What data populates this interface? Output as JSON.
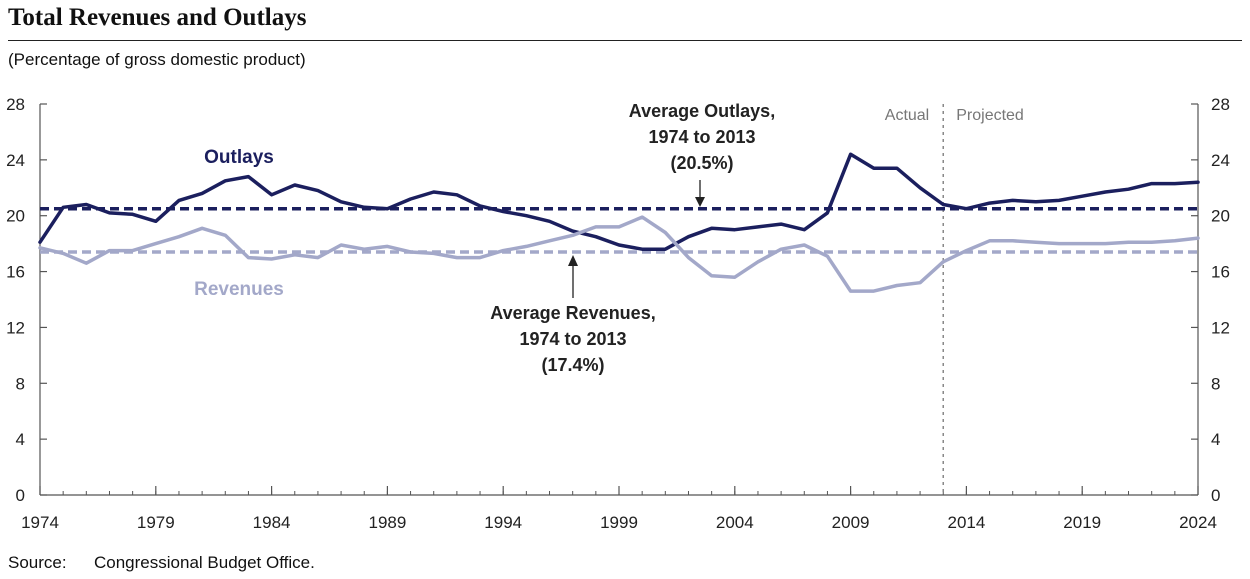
{
  "title": "Total Revenues and Outlays",
  "subtitle": "(Percentage of gross domestic product)",
  "source": {
    "label": "Source:",
    "text": "Congressional Budget Office."
  },
  "colors": {
    "outlays": "#1b1f5e",
    "revenues": "#a3a8c9",
    "axis": "#555555",
    "divider": "#888888",
    "region_label": "#777777"
  },
  "chart_data": {
    "type": "line",
    "x_range": [
      1974,
      2024
    ],
    "ylim": [
      0,
      28
    ],
    "y_ticks": [
      0,
      4,
      8,
      12,
      16,
      20,
      24,
      28
    ],
    "x_ticks": [
      1974,
      1979,
      1984,
      1989,
      1994,
      1999,
      2004,
      2009,
      2014,
      2019,
      2024
    ],
    "grid": false,
    "divider_x": 2013,
    "region_labels": {
      "actual": "Actual",
      "projected": "Projected"
    },
    "x": [
      1974,
      1975,
      1976,
      1977,
      1978,
      1979,
      1980,
      1981,
      1982,
      1983,
      1984,
      1985,
      1986,
      1987,
      1988,
      1989,
      1990,
      1991,
      1992,
      1993,
      1994,
      1995,
      1996,
      1997,
      1998,
      1999,
      2000,
      2001,
      2002,
      2003,
      2004,
      2005,
      2006,
      2007,
      2008,
      2009,
      2010,
      2011,
      2012,
      2013,
      2014,
      2015,
      2016,
      2017,
      2018,
      2019,
      2020,
      2021,
      2022,
      2023,
      2024
    ],
    "series": [
      {
        "name": "Outlays",
        "values": [
          18.1,
          20.6,
          20.8,
          20.2,
          20.1,
          19.6,
          21.1,
          21.6,
          22.5,
          22.8,
          21.5,
          22.2,
          21.8,
          21.0,
          20.6,
          20.5,
          21.2,
          21.7,
          21.5,
          20.7,
          20.3,
          20.0,
          19.6,
          18.9,
          18.5,
          17.9,
          17.6,
          17.6,
          18.5,
          19.1,
          19.0,
          19.2,
          19.4,
          19.0,
          20.2,
          24.4,
          23.4,
          23.4,
          22.0,
          20.8,
          20.5,
          20.9,
          21.1,
          21.0,
          21.1,
          21.4,
          21.7,
          21.9,
          22.3,
          22.3,
          22.4
        ]
      },
      {
        "name": "Revenues",
        "values": [
          17.7,
          17.3,
          16.6,
          17.5,
          17.5,
          18.0,
          18.5,
          19.1,
          18.6,
          17.0,
          16.9,
          17.2,
          17.0,
          17.9,
          17.6,
          17.8,
          17.4,
          17.3,
          17.0,
          17.0,
          17.5,
          17.8,
          18.2,
          18.6,
          19.2,
          19.2,
          19.9,
          18.8,
          17.0,
          15.7,
          15.6,
          16.7,
          17.6,
          17.9,
          17.1,
          14.6,
          14.6,
          15.0,
          15.2,
          16.7,
          17.5,
          18.2,
          18.2,
          18.1,
          18.0,
          18.0,
          18.0,
          18.1,
          18.1,
          18.2,
          18.4
        ]
      }
    ],
    "averages": [
      {
        "name": "Average Outlays, 1974 to 2013",
        "value": 20.5
      },
      {
        "name": "Average Revenues, 1974 to 2013",
        "value": 17.4
      }
    ],
    "annotations": {
      "outlays_label": "Outlays",
      "revenues_label": "Revenues",
      "avg_outlays": [
        "Average Outlays,",
        "1974 to 2013",
        "(20.5%)"
      ],
      "avg_revenues": [
        "Average Revenues,",
        "1974 to 2013",
        "(17.4%)"
      ]
    }
  }
}
